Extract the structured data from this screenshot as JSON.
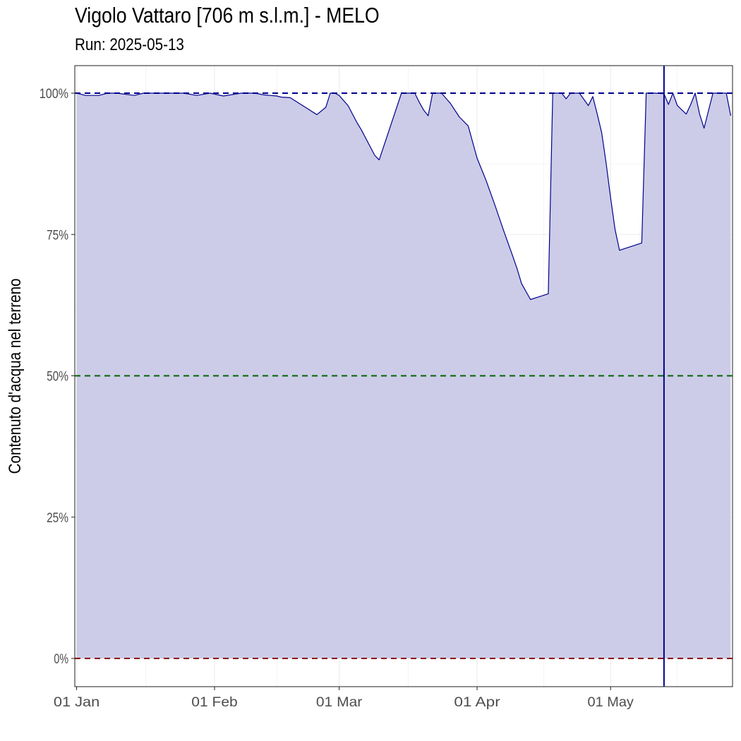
{
  "chart_data": {
    "type": "area",
    "title": "Vigolo Vattaro [706 m s.l.m.] - MELO",
    "subtitle": "Run: 2025-05-13",
    "xlabel": "",
    "ylabel": "Contenuto d'acqua nel terreno",
    "x_range": [
      "2025-01-01",
      "2025-05-28"
    ],
    "ylim": [
      0,
      100
    ],
    "y_ticks": [
      {
        "value": 0,
        "label": "0%"
      },
      {
        "value": 25,
        "label": "25%"
      },
      {
        "value": 50,
        "label": "50%"
      },
      {
        "value": 75,
        "label": "75%"
      },
      {
        "value": 100,
        "label": "100%"
      }
    ],
    "x_ticks": [
      {
        "date": "2025-01-01",
        "label": "01 Jan"
      },
      {
        "date": "2025-02-01",
        "label": "01 Feb"
      },
      {
        "date": "2025-03-01",
        "label": "01 Mar"
      },
      {
        "date": "2025-04-01",
        "label": "01 Apr"
      },
      {
        "date": "2025-05-01",
        "label": "01 May"
      }
    ],
    "grid": true,
    "series": [
      {
        "x": [
          "2025-01-01",
          "2025-01-03",
          "2025-01-06",
          "2025-01-08",
          "2025-01-10",
          "2025-01-14",
          "2025-01-16",
          "2025-01-18",
          "2025-01-20",
          "2025-01-23",
          "2025-01-25",
          "2025-01-28",
          "2025-01-31",
          "2025-02-03",
          "2025-02-07",
          "2025-02-08",
          "2025-02-10",
          "2025-02-12",
          "2025-02-15",
          "2025-02-16",
          "2025-02-18",
          "2025-02-20",
          "2025-02-22",
          "2025-02-24",
          "2025-02-26",
          "2025-02-27",
          "2025-02-28",
          "2025-03-01",
          "2025-03-03",
          "2025-03-05",
          "2025-03-06",
          "2025-03-08",
          "2025-03-09",
          "2025-03-10",
          "2025-03-15",
          "2025-03-16",
          "2025-03-17",
          "2025-03-18",
          "2025-03-19",
          "2025-03-20",
          "2025-03-21",
          "2025-03-22",
          "2025-03-24",
          "2025-03-26",
          "2025-03-28",
          "2025-03-30",
          "2025-04-01",
          "2025-04-03",
          "2025-04-05",
          "2025-04-07",
          "2025-04-09",
          "2025-04-10",
          "2025-04-11",
          "2025-04-13",
          "2025-04-17",
          "2025-04-18",
          "2025-04-19",
          "2025-04-20",
          "2025-04-21",
          "2025-04-22",
          "2025-04-24",
          "2025-04-26",
          "2025-04-27",
          "2025-04-28",
          "2025-04-29",
          "2025-04-30",
          "2025-05-01",
          "2025-05-02",
          "2025-05-03",
          "2025-05-08",
          "2025-05-09",
          "2025-05-10",
          "2025-05-11",
          "2025-05-13",
          "2025-05-14",
          "2025-05-15",
          "2025-05-16",
          "2025-05-18",
          "2025-05-19",
          "2025-05-20",
          "2025-05-21",
          "2025-05-22",
          "2025-05-24",
          "2025-05-27",
          "2025-05-28"
        ],
        "values": [
          100,
          99.6,
          99.6,
          100,
          100,
          99.6,
          100,
          100,
          100,
          100,
          100,
          99.6,
          100,
          99.5,
          100,
          100,
          100,
          99.7,
          99.5,
          99.3,
          99.2,
          98.2,
          97.2,
          96.2,
          97.5,
          100,
          100,
          99.6,
          97.8,
          94.8,
          93.5,
          90.5,
          89,
          88.2,
          100,
          100,
          100,
          100,
          98.4,
          97,
          96,
          100,
          100,
          98.2,
          95.8,
          94.2,
          88.5,
          84.6,
          80.2,
          75.6,
          71.2,
          68.9,
          66.3,
          63.5,
          64.5,
          100,
          100,
          100,
          99,
          100,
          100,
          97.8,
          99.4,
          96.3,
          93,
          87.6,
          81.5,
          75.9,
          72.2,
          73.5,
          100,
          100,
          100,
          99.9,
          98,
          100,
          97.8,
          96.3,
          98,
          100,
          96.3,
          93.8,
          100,
          100,
          96
        ]
      }
    ],
    "reference_lines": {
      "upper": {
        "value": 100,
        "color": "#00008b"
      },
      "middle": {
        "value": 50,
        "color": "#006400"
      },
      "lower": {
        "value": 0,
        "color": "#8b0000"
      },
      "run_date": {
        "date": "2025-05-13",
        "color": "#00008b"
      }
    },
    "colors": {
      "fill": "#cccce8",
      "line": "#00008b",
      "grid": "#ebebeb",
      "panel_border": "#333333"
    }
  }
}
